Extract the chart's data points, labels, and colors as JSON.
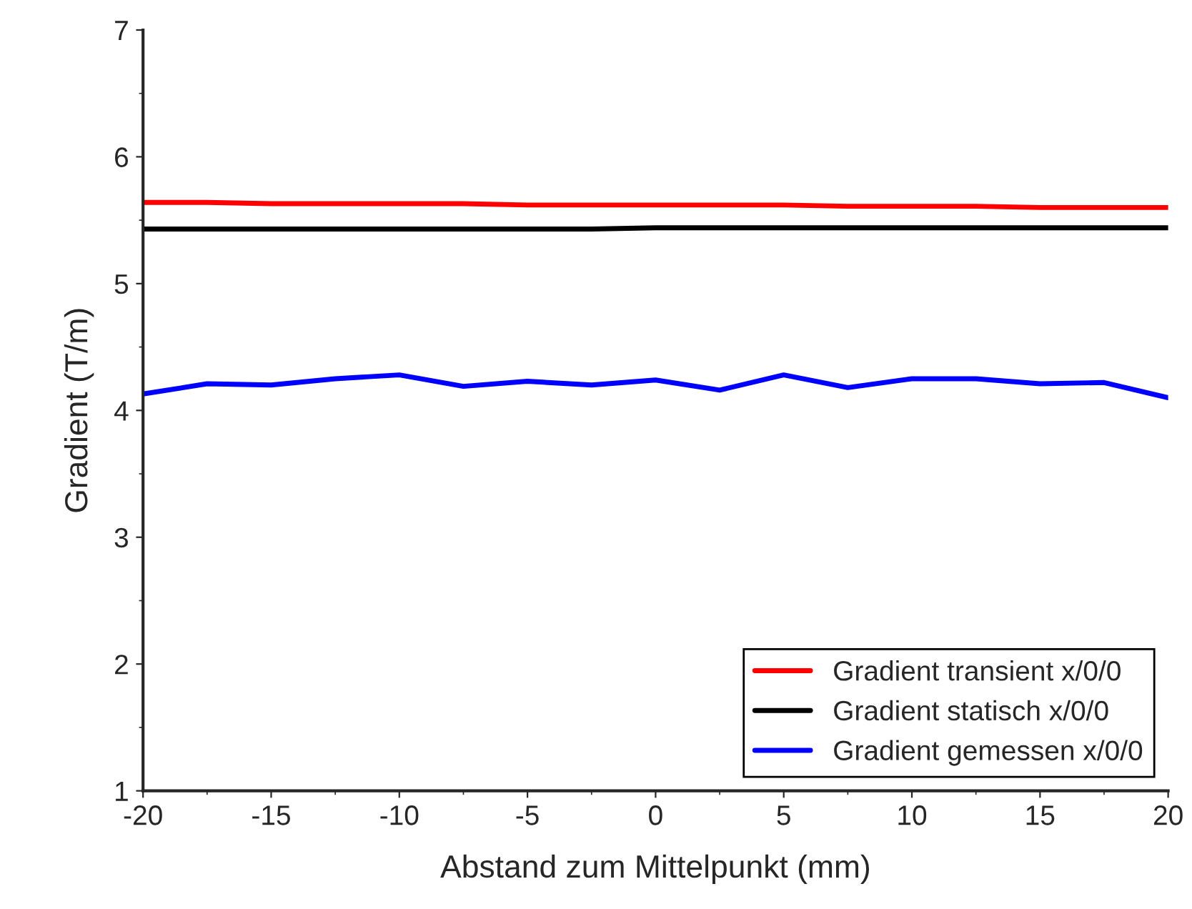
{
  "chart_data": {
    "type": "line",
    "xlabel": "Abstand zum Mittelpunkt (mm)",
    "ylabel": "Gradient (T/m)",
    "x": [
      -20,
      -17.5,
      -15,
      -12.5,
      -10,
      -7.5,
      -5,
      -2.5,
      0,
      2.5,
      5,
      7.5,
      10,
      12.5,
      15,
      17.5,
      20
    ],
    "series": [
      {
        "name": "Gradient transient x/0/0",
        "color": "#ff0000",
        "values": [
          5.64,
          5.64,
          5.63,
          5.63,
          5.63,
          5.63,
          5.62,
          5.62,
          5.62,
          5.62,
          5.62,
          5.61,
          5.61,
          5.61,
          5.6,
          5.6,
          5.6
        ]
      },
      {
        "name": "Gradient statisch x/0/0",
        "color": "#000000",
        "values": [
          5.43,
          5.43,
          5.43,
          5.43,
          5.43,
          5.43,
          5.43,
          5.43,
          5.44,
          5.44,
          5.44,
          5.44,
          5.44,
          5.44,
          5.44,
          5.44,
          5.44
        ]
      },
      {
        "name": "Gradient gemessen x/0/0",
        "color": "#0000ff",
        "values": [
          4.13,
          4.21,
          4.2,
          4.25,
          4.28,
          4.19,
          4.23,
          4.2,
          4.24,
          4.16,
          4.28,
          4.18,
          4.25,
          4.25,
          4.21,
          4.22,
          4.1
        ]
      }
    ],
    "xlim": [
      -20,
      20
    ],
    "xticks": [
      -20,
      -15,
      -10,
      -5,
      0,
      5,
      10,
      15,
      20
    ],
    "ylim": [
      1,
      7
    ],
    "yticks": [
      1,
      2,
      3,
      4,
      5,
      6,
      7
    ],
    "grid": false,
    "legend": "bottom right",
    "marker": "none",
    "line_style": "solid"
  }
}
